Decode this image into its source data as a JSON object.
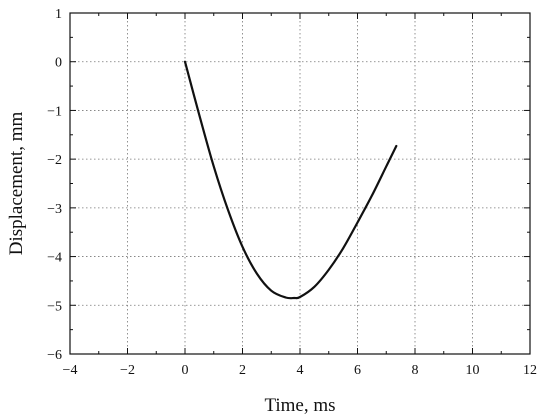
{
  "chart_data": {
    "type": "line",
    "xlabel": "Time, ms",
    "ylabel": "Displacement, mm",
    "xlim": [
      -4,
      12
    ],
    "ylim": [
      -6,
      1
    ],
    "xticks": [
      -4,
      -2,
      0,
      2,
      4,
      6,
      8,
      10,
      12
    ],
    "yticks": [
      1,
      0,
      -1,
      -2,
      -3,
      -4,
      -5,
      -6
    ],
    "xtick_labels": [
      "−4",
      "−2",
      "0",
      "2",
      "4",
      "6",
      "8",
      "10",
      "12"
    ],
    "ytick_labels": [
      "1",
      "0",
      "−1",
      "−2",
      "−3",
      "−4",
      "−5",
      "−6"
    ],
    "grid": true,
    "series": [
      {
        "color": "#111111",
        "x": [
          0.0,
          0.5,
          1.0,
          1.5,
          2.0,
          2.5,
          3.0,
          3.5,
          3.8,
          4.0,
          4.5,
          5.0,
          5.5,
          6.0,
          6.5,
          7.0,
          7.35
        ],
        "y": [
          0.0,
          -1.1,
          -2.15,
          -3.05,
          -3.8,
          -4.35,
          -4.7,
          -4.84,
          -4.85,
          -4.83,
          -4.62,
          -4.27,
          -3.83,
          -3.3,
          -2.75,
          -2.15,
          -1.73
        ]
      }
    ]
  }
}
